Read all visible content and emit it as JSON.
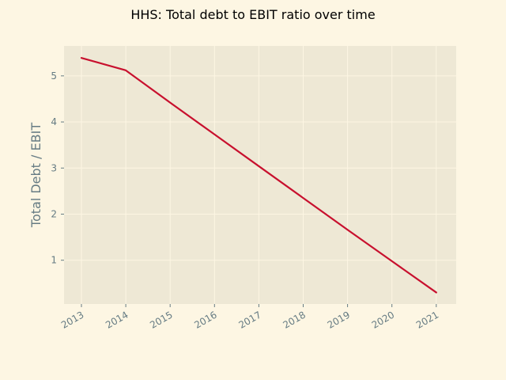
{
  "chart_data": {
    "type": "line",
    "title": "HHS: Total debt to EBIT ratio over time",
    "xlabel": "",
    "ylabel": "Total Debt / EBIT",
    "x": [
      "2013",
      "2014",
      "2015",
      "2016",
      "2017",
      "2018",
      "2019",
      "2020",
      "2021"
    ],
    "series": [
      {
        "values": [
          5.39,
          5.12,
          4.42,
          3.73,
          3.04,
          2.35,
          1.66,
          0.98,
          0.3
        ]
      }
    ],
    "y_ticks": [
      "1",
      "2",
      "3",
      "4",
      "5"
    ],
    "ylim": [
      0.05,
      5.65
    ],
    "grid": true,
    "colors": {
      "line": "#c8102e",
      "plot_background": "#eee8d5",
      "figure_background": "#fdf6e3",
      "grid": "#fdf6e3",
      "tick_text": "#657b83"
    }
  }
}
